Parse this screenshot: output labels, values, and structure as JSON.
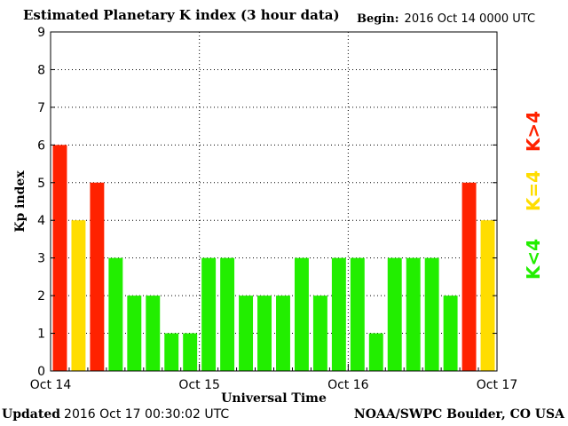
{
  "header": {
    "title": "Estimated Planetary K index (3 hour data)",
    "begin_label": "Begin:",
    "begin_value": "2016 Oct 14 0000 UTC"
  },
  "footer": {
    "updated_label": "Updated",
    "updated_value": "2016 Oct 17 00:30:02 UTC",
    "credit": "NOAA/SWPC Boulder, CO USA"
  },
  "legend": [
    {
      "label": "K>4",
      "color": "#ff2200"
    },
    {
      "label": "K=4",
      "color": "#ffdd00"
    },
    {
      "label": "K<4",
      "color": "#22ee00"
    }
  ],
  "chart_data": {
    "type": "bar",
    "title": "Estimated Planetary K index (3 hour data)",
    "xlabel": "Universal Time",
    "ylabel": "Kp index",
    "ylim": [
      0,
      9
    ],
    "y_ticks": [
      "0",
      "1",
      "2",
      "3",
      "4",
      "5",
      "6",
      "7",
      "8",
      "9"
    ],
    "x_ticks": [
      "Oct 14",
      "Oct 15",
      "Oct 16",
      "Oct 17"
    ],
    "grid": true,
    "bar_interval_hours": 3,
    "values": [
      6,
      4,
      5,
      3,
      2,
      2,
      1,
      1,
      3,
      3,
      2,
      2,
      2,
      3,
      2,
      3,
      3,
      1,
      3,
      3,
      3,
      2,
      5,
      4
    ],
    "colors": {
      "above4": "#ff2200",
      "equal4": "#ffdd00",
      "below4": "#22ee00"
    }
  }
}
